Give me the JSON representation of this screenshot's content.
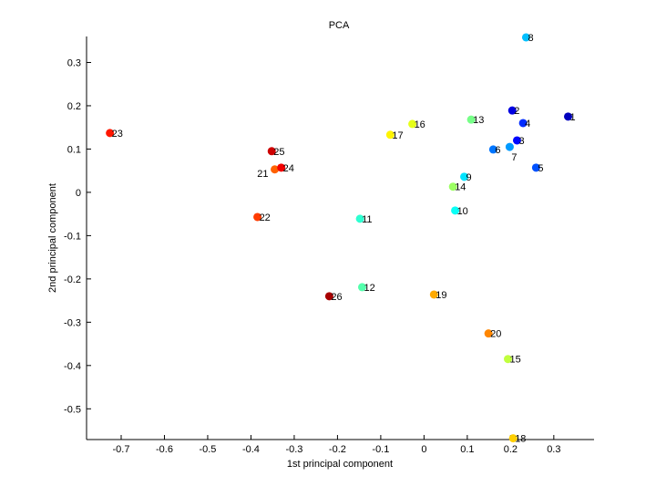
{
  "chart_data": {
    "type": "scatter",
    "title": "PCA",
    "xlabel": "1st principal component",
    "ylabel": "2nd principal component",
    "xlim": [
      -0.78,
      0.393
    ],
    "ylim": [
      -0.571,
      0.36
    ],
    "xticks": [
      -0.7,
      -0.6,
      -0.5,
      -0.4,
      -0.3,
      -0.2,
      -0.1,
      0,
      0.1,
      0.2,
      0.3
    ],
    "xtick_labels": [
      "-0.7",
      "-0.6",
      "-0.5",
      "-0.4",
      "-0.3",
      "-0.2",
      "-0.1",
      "0",
      "0.1",
      "0.2",
      "0.3"
    ],
    "yticks": [
      0.3,
      0.2,
      0.1,
      0,
      -0.1,
      -0.2,
      -0.3,
      -0.4,
      -0.5
    ],
    "ytick_labels": [
      "0.3",
      "0.2",
      "0.1",
      "0",
      "-0.1",
      "-0.2",
      "-0.3",
      "-0.4",
      "-0.5"
    ],
    "grid": false,
    "colormap": "jet",
    "points": [
      {
        "label": "1",
        "x": 0.333,
        "y": 0.175
      },
      {
        "label": "2",
        "x": 0.204,
        "y": 0.189
      },
      {
        "label": "3",
        "x": 0.215,
        "y": 0.12
      },
      {
        "label": "4",
        "x": 0.229,
        "y": 0.16
      },
      {
        "label": "5",
        "x": 0.259,
        "y": 0.057
      },
      {
        "label": "6",
        "x": 0.16,
        "y": 0.099
      },
      {
        "label": "7",
        "x": 0.198,
        "y": 0.105
      },
      {
        "label": "8",
        "x": 0.236,
        "y": 0.358
      },
      {
        "label": "9",
        "x": 0.093,
        "y": 0.036
      },
      {
        "label": "10",
        "x": 0.072,
        "y": -0.042
      },
      {
        "label": "11",
        "x": -0.148,
        "y": -0.061
      },
      {
        "label": "12",
        "x": -0.143,
        "y": -0.219
      },
      {
        "label": "13",
        "x": 0.109,
        "y": 0.168
      },
      {
        "label": "14",
        "x": 0.067,
        "y": 0.013
      },
      {
        "label": "15",
        "x": 0.194,
        "y": -0.385
      },
      {
        "label": "16",
        "x": -0.027,
        "y": 0.158
      },
      {
        "label": "17",
        "x": -0.078,
        "y": 0.133
      },
      {
        "label": "18",
        "x": 0.206,
        "y": -0.568
      },
      {
        "label": "19",
        "x": 0.023,
        "y": -0.236
      },
      {
        "label": "20",
        "x": 0.149,
        "y": -0.326
      },
      {
        "label": "21",
        "x": -0.345,
        "y": 0.053
      },
      {
        "label": "22",
        "x": -0.385,
        "y": -0.057
      },
      {
        "label": "23",
        "x": -0.726,
        "y": 0.137
      },
      {
        "label": "24",
        "x": -0.33,
        "y": 0.057
      },
      {
        "label": "25",
        "x": -0.352,
        "y": 0.095
      },
      {
        "label": "26",
        "x": -0.219,
        "y": -0.24
      }
    ]
  }
}
